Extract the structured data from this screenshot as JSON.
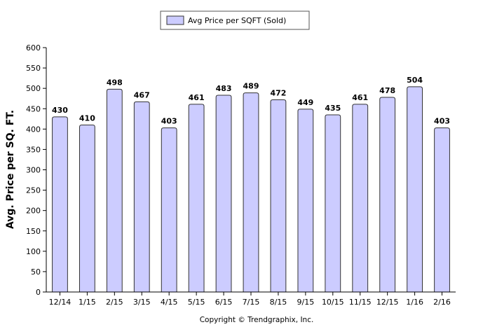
{
  "chart_data": {
    "type": "bar",
    "title": "",
    "xlabel": "",
    "ylabel": "Avg. Price per SQ. FT.",
    "ylim": [
      0,
      600
    ],
    "yticks": [
      0,
      50,
      100,
      150,
      200,
      250,
      300,
      350,
      400,
      450,
      500,
      550,
      600
    ],
    "grid": false,
    "legend_position": "top-center",
    "categories": [
      "12/14",
      "1/15",
      "2/15",
      "3/15",
      "4/15",
      "5/15",
      "6/15",
      "7/15",
      "8/15",
      "9/15",
      "10/15",
      "11/15",
      "12/15",
      "1/16",
      "2/16"
    ],
    "series": [
      {
        "name": "Avg Price per SQFT (Sold)",
        "color": "#ccccff",
        "values": [
          430,
          410,
          498,
          467,
          403,
          461,
          483,
          489,
          472,
          449,
          435,
          461,
          478,
          504,
          403
        ]
      }
    ],
    "data_labels": [
      "430",
      "410",
      "498",
      "467",
      "403",
      "461",
      "483",
      "489",
      "472",
      "449",
      "435",
      "461",
      "478",
      "504",
      "403"
    ]
  },
  "footer": {
    "copyright": "Copyright © Trendgraphix, Inc."
  }
}
